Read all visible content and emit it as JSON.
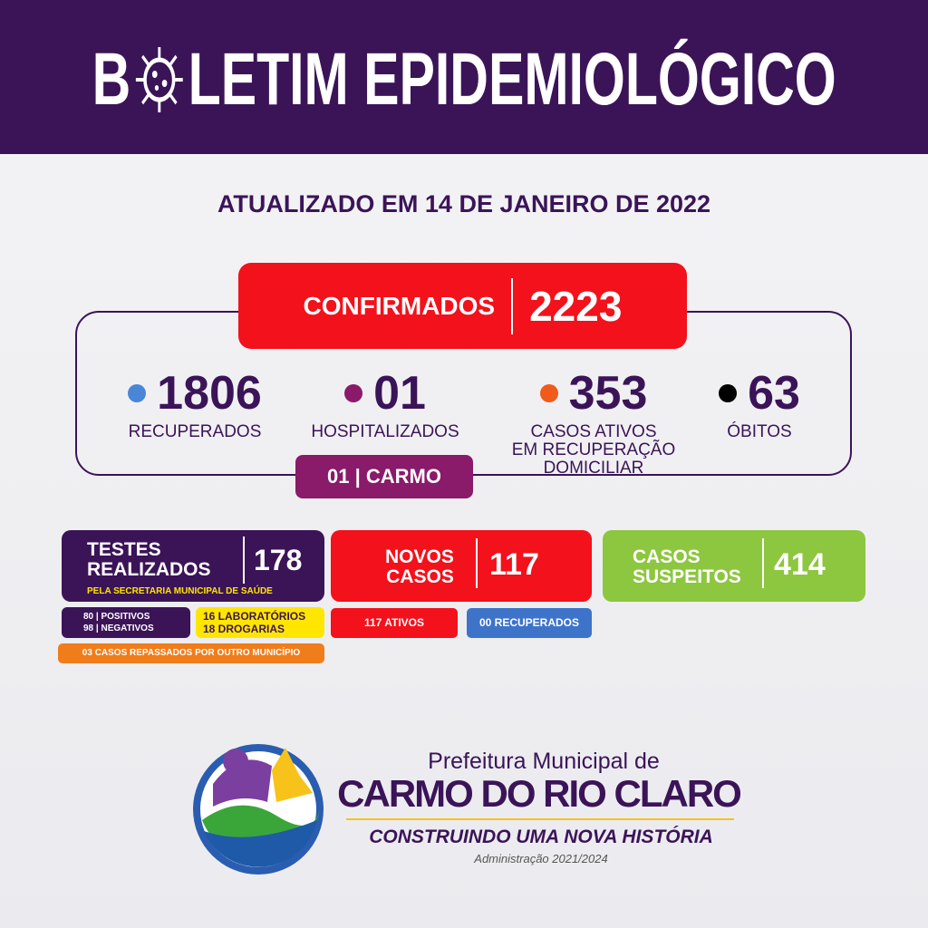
{
  "header": {
    "title_start": "B",
    "title_end": "LETIM EPIDEMIOLÓGICO"
  },
  "updated": "ATUALIZADO EM 14 DE JANEIRO DE 2022",
  "confirmed": {
    "label": "CONFIRMADOS",
    "value": 2223
  },
  "stats": [
    {
      "value": 1806,
      "label": [
        "RECUPERADOS"
      ]
    },
    {
      "value": "01",
      "label": [
        "HOSPITALIZADOS"
      ]
    },
    {
      "value": 353,
      "label": [
        "CASOS ATIVOS",
        "EM RECUPERAÇÃO",
        "DOMICILIAR"
      ]
    },
    {
      "value": 63,
      "label": [
        "ÓBITOS"
      ]
    }
  ],
  "hospital_badge": "01 | CARMO",
  "tests": {
    "label": [
      "TESTES",
      "REALIZADOS"
    ],
    "value": 178,
    "note": "PELA SECRETARIA MUNICIPAL DE SAÚDE",
    "results": [
      "80 | POSITIVOS",
      "98 | NEGATIVOS"
    ],
    "places": [
      "16 LABORATÓRIOS",
      "18 DROGARIAS"
    ],
    "transferred": "03 CASOS REPASSADOS POR OUTRO MUNICÍPIO"
  },
  "new_cases": {
    "label": [
      "NOVOS",
      "CASOS"
    ],
    "value": 117,
    "active": "117 ATIVOS",
    "recovered": "00 RECUPERADOS"
  },
  "suspected": {
    "label": [
      "CASOS",
      "SUSPEITOS"
    ],
    "value": 414
  },
  "footer": {
    "line1": "Prefeitura Municipal de",
    "city": "CARMO DO RIO CLARO",
    "slogan": "CONSTRUINDO UMA NOVA HISTÓRIA",
    "admin": "Administração 2021/2024"
  }
}
